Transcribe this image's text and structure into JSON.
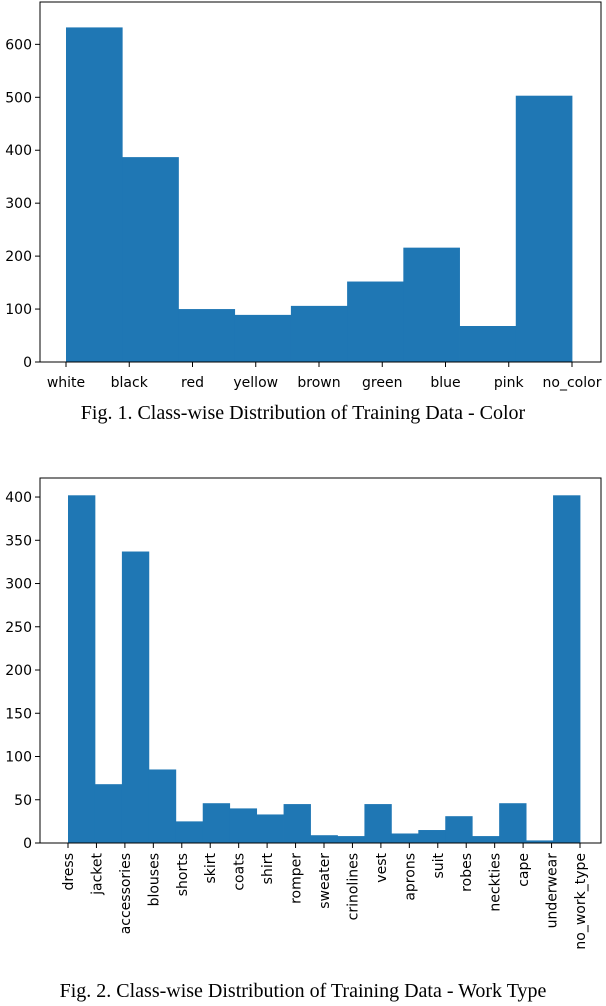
{
  "chart_data": [
    {
      "type": "bar",
      "categories": [
        "white",
        "black",
        "red",
        "yellow",
        "brown",
        "green",
        "blue",
        "pink",
        "no_color"
      ],
      "values": [
        632,
        387,
        100,
        89,
        106,
        152,
        216,
        68,
        503
      ],
      "ylim": [
        0,
        680
      ],
      "yticks": [
        0,
        100,
        200,
        300,
        400,
        500,
        600
      ],
      "bar_color": "#1f77b4",
      "caption": "Fig. 1.  Class-wise Distribution of Training Data - Color",
      "grid": false
    },
    {
      "type": "bar",
      "categories": [
        "dress",
        "jacket",
        "accessories",
        "blouses",
        "shorts",
        "skirt",
        "coats",
        "shirt",
        "romper",
        "sweater",
        "crinolines",
        "vest",
        "aprons",
        "suit",
        "robes",
        "neckties",
        "cape",
        "underwear",
        "no_work_type"
      ],
      "values": [
        402,
        68,
        337,
        85,
        25,
        46,
        40,
        33,
        45,
        9,
        8,
        45,
        11,
        15,
        31,
        8,
        46,
        3,
        402
      ],
      "ylim": [
        0,
        422
      ],
      "yticks": [
        0,
        50,
        100,
        150,
        200,
        250,
        300,
        350,
        400
      ],
      "bar_color": "#1f77b4",
      "caption": "Fig. 2.  Class-wise Distribution of Training Data - Work Type",
      "grid": false
    }
  ]
}
